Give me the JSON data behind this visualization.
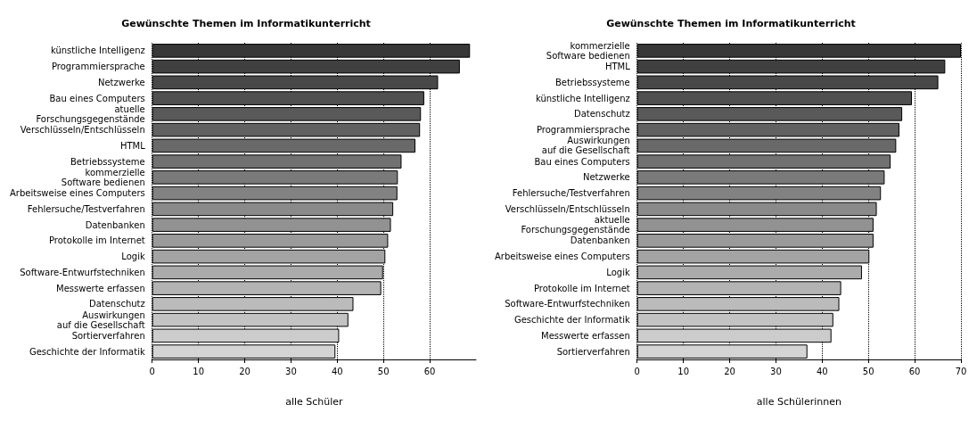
{
  "chart_data": [
    {
      "type": "bar",
      "orientation": "horizontal",
      "title": "Gewünschte Themen im Informatikunterricht",
      "xlabel": "alle Schüler",
      "categories": [
        "künstliche Intelligenz",
        "Programmiersprache",
        "Netzwerke",
        "Bau eines Computers",
        "atuelle\nForschungsgegenstände",
        "Verschlüsseln/Entschlüsseln",
        "HTML",
        "Betriebssysteme",
        "kommerzielle\nSoftware bedienen",
        "Arbeitsweise eines Computers",
        "Fehlersuche/Testverfahren",
        "Datenbanken",
        "Protokolle im Internet",
        "Logik",
        "Software-Entwurfstechniken",
        "Messwerte erfassen",
        "Datenschutz",
        "Auswirkungen\nauf die Gesellschaft",
        "Sortierverfahren",
        "Geschichte der Informatik"
      ],
      "values": [
        68.7,
        66.5,
        61.8,
        58.8,
        58.1,
        57.9,
        56.9,
        53.9,
        53.1,
        53.0,
        52.1,
        51.6,
        51.0,
        50.4,
        49.9,
        49.5,
        43.5,
        42.4,
        40.4,
        39.6
      ],
      "colors": [
        "#383838",
        "#404040",
        "#484848",
        "#505050",
        "#595959",
        "#616161",
        "#696969",
        "#717171",
        "#7a7a7a",
        "#828282",
        "#8a8a8a",
        "#929292",
        "#9a9a9a",
        "#a3a3a3",
        "#ababab",
        "#b3b3b3",
        "#bbbbbb",
        "#c3c3c3",
        "#cccccc",
        "#d4d4d4"
      ],
      "xlim": [
        0,
        70
      ],
      "xticks": [
        0,
        10,
        20,
        30,
        40,
        50,
        60
      ],
      "grid": "x"
    },
    {
      "type": "bar",
      "orientation": "horizontal",
      "title": "Gewünschte Themen im Informatikunterricht",
      "xlabel": "alle Schülerinnen",
      "categories": [
        "kommerzielle\nSoftware bedienen",
        "HTML",
        "Betriebssysteme",
        "künstliche Intelligenz",
        "Datenschutz",
        "Programmiersprache",
        "Auswirkungen\nauf die Gesellschaft",
        "Bau eines Computers",
        "Netzwerke",
        "Fehlersuche/Testverfahren",
        "Verschlüsseln/Entschlüsseln",
        "aktuelle\nForschungsgegenstände",
        "Datenbanken",
        "Arbeitsweise eines Computers",
        "Logik",
        "Protokolle im Internet",
        "Software-Entwurfstechniken",
        "Geschichte der Informatik",
        "Messwerte erfassen",
        "Sortierverfahren"
      ],
      "values": [
        70,
        66.6,
        65.1,
        59.4,
        57.3,
        56.7,
        56.0,
        54.8,
        53.5,
        52.7,
        51.8,
        51.1,
        51.1,
        50.2,
        48.6,
        44.1,
        43.7,
        42.4,
        42.0,
        36.8
      ],
      "colors": [
        "#383838",
        "#404040",
        "#484848",
        "#505050",
        "#595959",
        "#616161",
        "#696969",
        "#717171",
        "#7a7a7a",
        "#828282",
        "#8a8a8a",
        "#929292",
        "#9a9a9a",
        "#a3a3a3",
        "#ababab",
        "#b3b3b3",
        "#bbbbbb",
        "#c3c3c3",
        "#cccccc",
        "#d4d4d4"
      ],
      "xlim": [
        0,
        70
      ],
      "xticks": [
        0,
        10,
        20,
        30,
        40,
        50,
        60,
        70
      ],
      "grid": "x"
    }
  ]
}
